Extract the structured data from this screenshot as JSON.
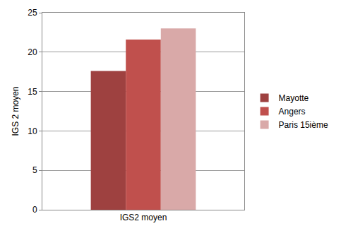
{
  "chart_data": {
    "type": "bar",
    "categories": [
      "IGS2 moyen"
    ],
    "series": [
      {
        "name": "Mayotte",
        "color": "#9e4140",
        "values": [
          17.6
        ]
      },
      {
        "name": "Angers",
        "color": "#c0504d",
        "values": [
          21.6
        ]
      },
      {
        "name": "Paris 15ième",
        "color": "#d9a9a8",
        "values": [
          23.0
        ]
      }
    ],
    "y_label": "IGS 2 moyen",
    "ylim": [
      0,
      25
    ],
    "yticks": [
      0,
      5,
      10,
      15,
      20,
      25
    ],
    "grid": true,
    "legend": "right"
  }
}
